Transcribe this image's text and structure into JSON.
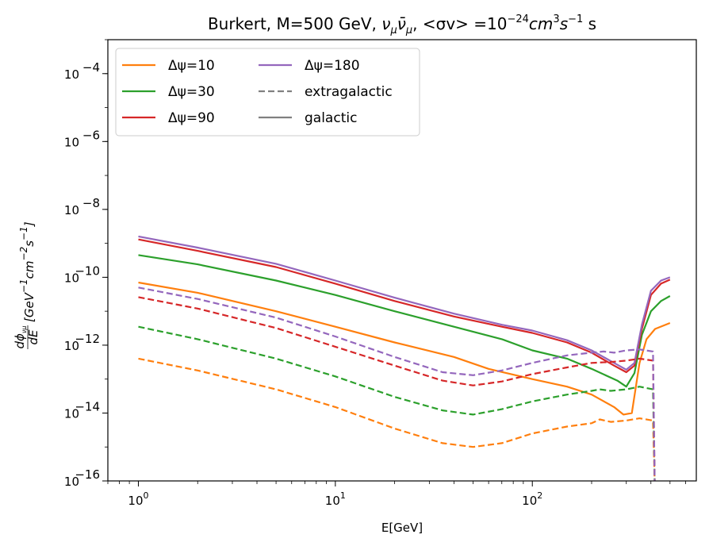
{
  "chart_data": {
    "type": "line",
    "title": "Burkert, M=500 GeV, νμν̄μ, <σv> =10⁻²⁴cm³s⁻¹ s",
    "title_parts": {
      "prefix": "Burkert, M=500 GeV, ",
      "nu": "ν",
      "mu_sub": "μ",
      "nubar": "ν̄",
      "mu_sub2": "μ",
      "sigma_v": ", <σv> =10",
      "exp1": "−24",
      "cm": "cm",
      "exp2": "3",
      "s": "s",
      "exp3": "−1",
      "suffix": " s"
    },
    "xlabel": "E[GeV]",
    "ylabel": "dϕνμ/dE [GeV⁻¹cm⁻²s⁻¹]",
    "ylabel_parts": {
      "frac_num": "dϕ",
      "frac_num_sub": "νμ",
      "frac_den": "dE",
      "bracket_open": "[GeV",
      "e1": "−1",
      "cm": "cm",
      "e2": "−2",
      "s": "s",
      "e3": "−1",
      "bracket_close": "]"
    },
    "x_scale": "log",
    "y_scale": "log",
    "xlim": [
      0.7,
      680
    ],
    "ylim": [
      1e-16,
      0.001
    ],
    "x_ticks": [
      {
        "value": 1,
        "base": "10",
        "exp": "0"
      },
      {
        "value": 10,
        "base": "10",
        "exp": "1"
      },
      {
        "value": 100,
        "base": "10",
        "exp": "2"
      }
    ],
    "y_ticks": [
      {
        "value": 1e-16,
        "base": "10",
        "exp": "−16"
      },
      {
        "value": 1e-14,
        "base": "10",
        "exp": "−14"
      },
      {
        "value": 1e-12,
        "base": "10",
        "exp": "−12"
      },
      {
        "value": 1e-10,
        "base": "10",
        "exp": "−10"
      },
      {
        "value": 1e-08,
        "base": "10",
        "exp": "−8"
      },
      {
        "value": 1e-06,
        "base": "10",
        "exp": "−6"
      },
      {
        "value": 0.0001,
        "base": "10",
        "exp": "−4"
      }
    ],
    "grid": false,
    "legend": {
      "placement": "top-left",
      "entries": [
        {
          "label": "Δψ=10",
          "color": "#ff7f0e",
          "style": "solid"
        },
        {
          "label": "Δψ=30",
          "color": "#2ca02c",
          "style": "solid"
        },
        {
          "label": "Δψ=90",
          "color": "#d62728",
          "style": "solid"
        },
        {
          "label": "Δψ=180",
          "color": "#9467bd",
          "style": "solid"
        },
        {
          "label": "extragalactic",
          "color": "#808080",
          "style": "dashed"
        },
        {
          "label": "galactic",
          "color": "#808080",
          "style": "solid"
        }
      ]
    },
    "series": [
      {
        "name": "Δψ=10",
        "kind": "galactic",
        "color": "#ff7f0e",
        "style": "solid",
        "points": [
          [
            1,
            7e-11
          ],
          [
            2,
            3.5e-11
          ],
          [
            5,
            1e-11
          ],
          [
            10,
            3.5e-12
          ],
          [
            20,
            1.2e-12
          ],
          [
            40,
            4.5e-13
          ],
          [
            60,
            2e-13
          ],
          [
            100,
            1e-13
          ],
          [
            150,
            6e-14
          ],
          [
            200,
            3.5e-14
          ],
          [
            260,
            1.5e-14
          ],
          [
            290,
            9e-15
          ],
          [
            320,
            1e-14
          ],
          [
            350,
            3e-13
          ],
          [
            380,
            1.5e-12
          ],
          [
            420,
            3e-12
          ],
          [
            500,
            4.5e-12
          ]
        ]
      },
      {
        "name": "Δψ=30",
        "kind": "galactic",
        "color": "#2ca02c",
        "style": "solid",
        "points": [
          [
            1,
            4.5e-10
          ],
          [
            2,
            2.4e-10
          ],
          [
            5,
            8e-11
          ],
          [
            10,
            3e-11
          ],
          [
            20,
            1e-11
          ],
          [
            40,
            3.5e-12
          ],
          [
            70,
            1.5e-12
          ],
          [
            100,
            7e-13
          ],
          [
            150,
            4e-13
          ],
          [
            200,
            2e-13
          ],
          [
            270,
            9e-14
          ],
          [
            300,
            6e-14
          ],
          [
            330,
            1.5e-13
          ],
          [
            360,
            2e-12
          ],
          [
            400,
            1e-11
          ],
          [
            450,
            2e-11
          ],
          [
            500,
            2.8e-11
          ]
        ]
      },
      {
        "name": "Δψ=90",
        "kind": "galactic",
        "color": "#d62728",
        "style": "solid",
        "points": [
          [
            1,
            1.3e-09
          ],
          [
            2,
            6e-10
          ],
          [
            5,
            2e-10
          ],
          [
            10,
            6.5e-11
          ],
          [
            20,
            2e-11
          ],
          [
            40,
            7e-12
          ],
          [
            70,
            3.5e-12
          ],
          [
            100,
            2.3e-12
          ],
          [
            150,
            1.2e-12
          ],
          [
            200,
            6e-13
          ],
          [
            260,
            2.5e-13
          ],
          [
            300,
            1.6e-13
          ],
          [
            330,
            2.5e-13
          ],
          [
            360,
            3e-12
          ],
          [
            400,
            3e-11
          ],
          [
            450,
            6.5e-11
          ],
          [
            500,
            8.5e-11
          ]
        ]
      },
      {
        "name": "Δψ=180",
        "kind": "galactic",
        "color": "#9467bd",
        "style": "solid",
        "points": [
          [
            1,
            1.6e-09
          ],
          [
            2,
            7.5e-10
          ],
          [
            5,
            2.5e-10
          ],
          [
            10,
            8e-11
          ],
          [
            20,
            2.5e-11
          ],
          [
            40,
            8.5e-12
          ],
          [
            70,
            4e-12
          ],
          [
            100,
            2.7e-12
          ],
          [
            150,
            1.4e-12
          ],
          [
            200,
            7e-13
          ],
          [
            260,
            3e-13
          ],
          [
            300,
            1.9e-13
          ],
          [
            330,
            3e-13
          ],
          [
            360,
            4e-12
          ],
          [
            400,
            4e-11
          ],
          [
            450,
            8e-11
          ],
          [
            500,
            1e-10
          ]
        ]
      },
      {
        "name": "Δψ=10",
        "kind": "extragalactic",
        "color": "#ff7f0e",
        "style": "dashed",
        "points": [
          [
            1,
            4e-13
          ],
          [
            2,
            1.8e-13
          ],
          [
            5,
            5e-14
          ],
          [
            10,
            1.5e-14
          ],
          [
            20,
            3.5e-15
          ],
          [
            35,
            1.3e-15
          ],
          [
            50,
            1e-15
          ],
          [
            70,
            1.3e-15
          ],
          [
            100,
            2.5e-15
          ],
          [
            150,
            4e-15
          ],
          [
            200,
            5e-15
          ],
          [
            220,
            6.5e-15
          ],
          [
            250,
            5.5e-15
          ],
          [
            300,
            6e-15
          ],
          [
            350,
            7e-15
          ],
          [
            410,
            6e-15
          ],
          [
            418,
            1e-16
          ]
        ]
      },
      {
        "name": "Δψ=30",
        "kind": "extragalactic",
        "color": "#2ca02c",
        "style": "dashed",
        "points": [
          [
            1,
            3.5e-12
          ],
          [
            2,
            1.5e-12
          ],
          [
            5,
            4e-13
          ],
          [
            10,
            1.2e-13
          ],
          [
            20,
            3e-14
          ],
          [
            35,
            1.2e-14
          ],
          [
            50,
            9e-15
          ],
          [
            70,
            1.3e-14
          ],
          [
            100,
            2.2e-14
          ],
          [
            150,
            3.5e-14
          ],
          [
            200,
            4.5e-14
          ],
          [
            220,
            5e-14
          ],
          [
            250,
            4.5e-14
          ],
          [
            300,
            5e-14
          ],
          [
            350,
            6e-14
          ],
          [
            410,
            5e-14
          ],
          [
            418,
            1e-16
          ]
        ]
      },
      {
        "name": "Δψ=90",
        "kind": "extragalactic",
        "color": "#d62728",
        "style": "dashed",
        "points": [
          [
            1,
            2.6e-11
          ],
          [
            2,
            1.2e-11
          ],
          [
            5,
            3.2e-12
          ],
          [
            10,
            9e-13
          ],
          [
            20,
            2.5e-13
          ],
          [
            35,
            9e-14
          ],
          [
            50,
            6.5e-14
          ],
          [
            70,
            8.5e-14
          ],
          [
            100,
            1.4e-13
          ],
          [
            150,
            2.2e-13
          ],
          [
            200,
            3e-13
          ],
          [
            250,
            3.2e-13
          ],
          [
            300,
            3.5e-13
          ],
          [
            350,
            4e-13
          ],
          [
            410,
            3.5e-13
          ],
          [
            418,
            1e-16
          ]
        ]
      },
      {
        "name": "Δψ=180",
        "kind": "extragalactic",
        "color": "#9467bd",
        "style": "dashed",
        "points": [
          [
            1,
            5e-11
          ],
          [
            2,
            2.3e-11
          ],
          [
            5,
            6.5e-12
          ],
          [
            10,
            1.8e-12
          ],
          [
            20,
            4.5e-13
          ],
          [
            35,
            1.6e-13
          ],
          [
            50,
            1.3e-13
          ],
          [
            70,
            1.8e-13
          ],
          [
            100,
            3e-13
          ],
          [
            150,
            5e-13
          ],
          [
            200,
            6e-13
          ],
          [
            230,
            6.5e-13
          ],
          [
            260,
            6e-13
          ],
          [
            300,
            7e-13
          ],
          [
            350,
            7.5e-13
          ],
          [
            410,
            6.5e-13
          ],
          [
            418,
            1e-16
          ]
        ]
      }
    ]
  }
}
